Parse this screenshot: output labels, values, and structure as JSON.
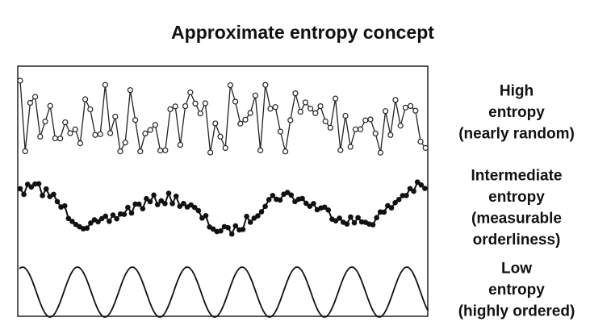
{
  "title": "Approximate entropy concept",
  "traces": [
    {
      "label_lines": [
        "High",
        "entropy",
        "(nearly random)"
      ]
    },
    {
      "label_lines": [
        "Intermediate",
        "entropy",
        "(measurable",
        "orderliness)"
      ]
    },
    {
      "label_lines": [
        "Low",
        "entropy",
        "(highly ordered)"
      ]
    }
  ]
}
